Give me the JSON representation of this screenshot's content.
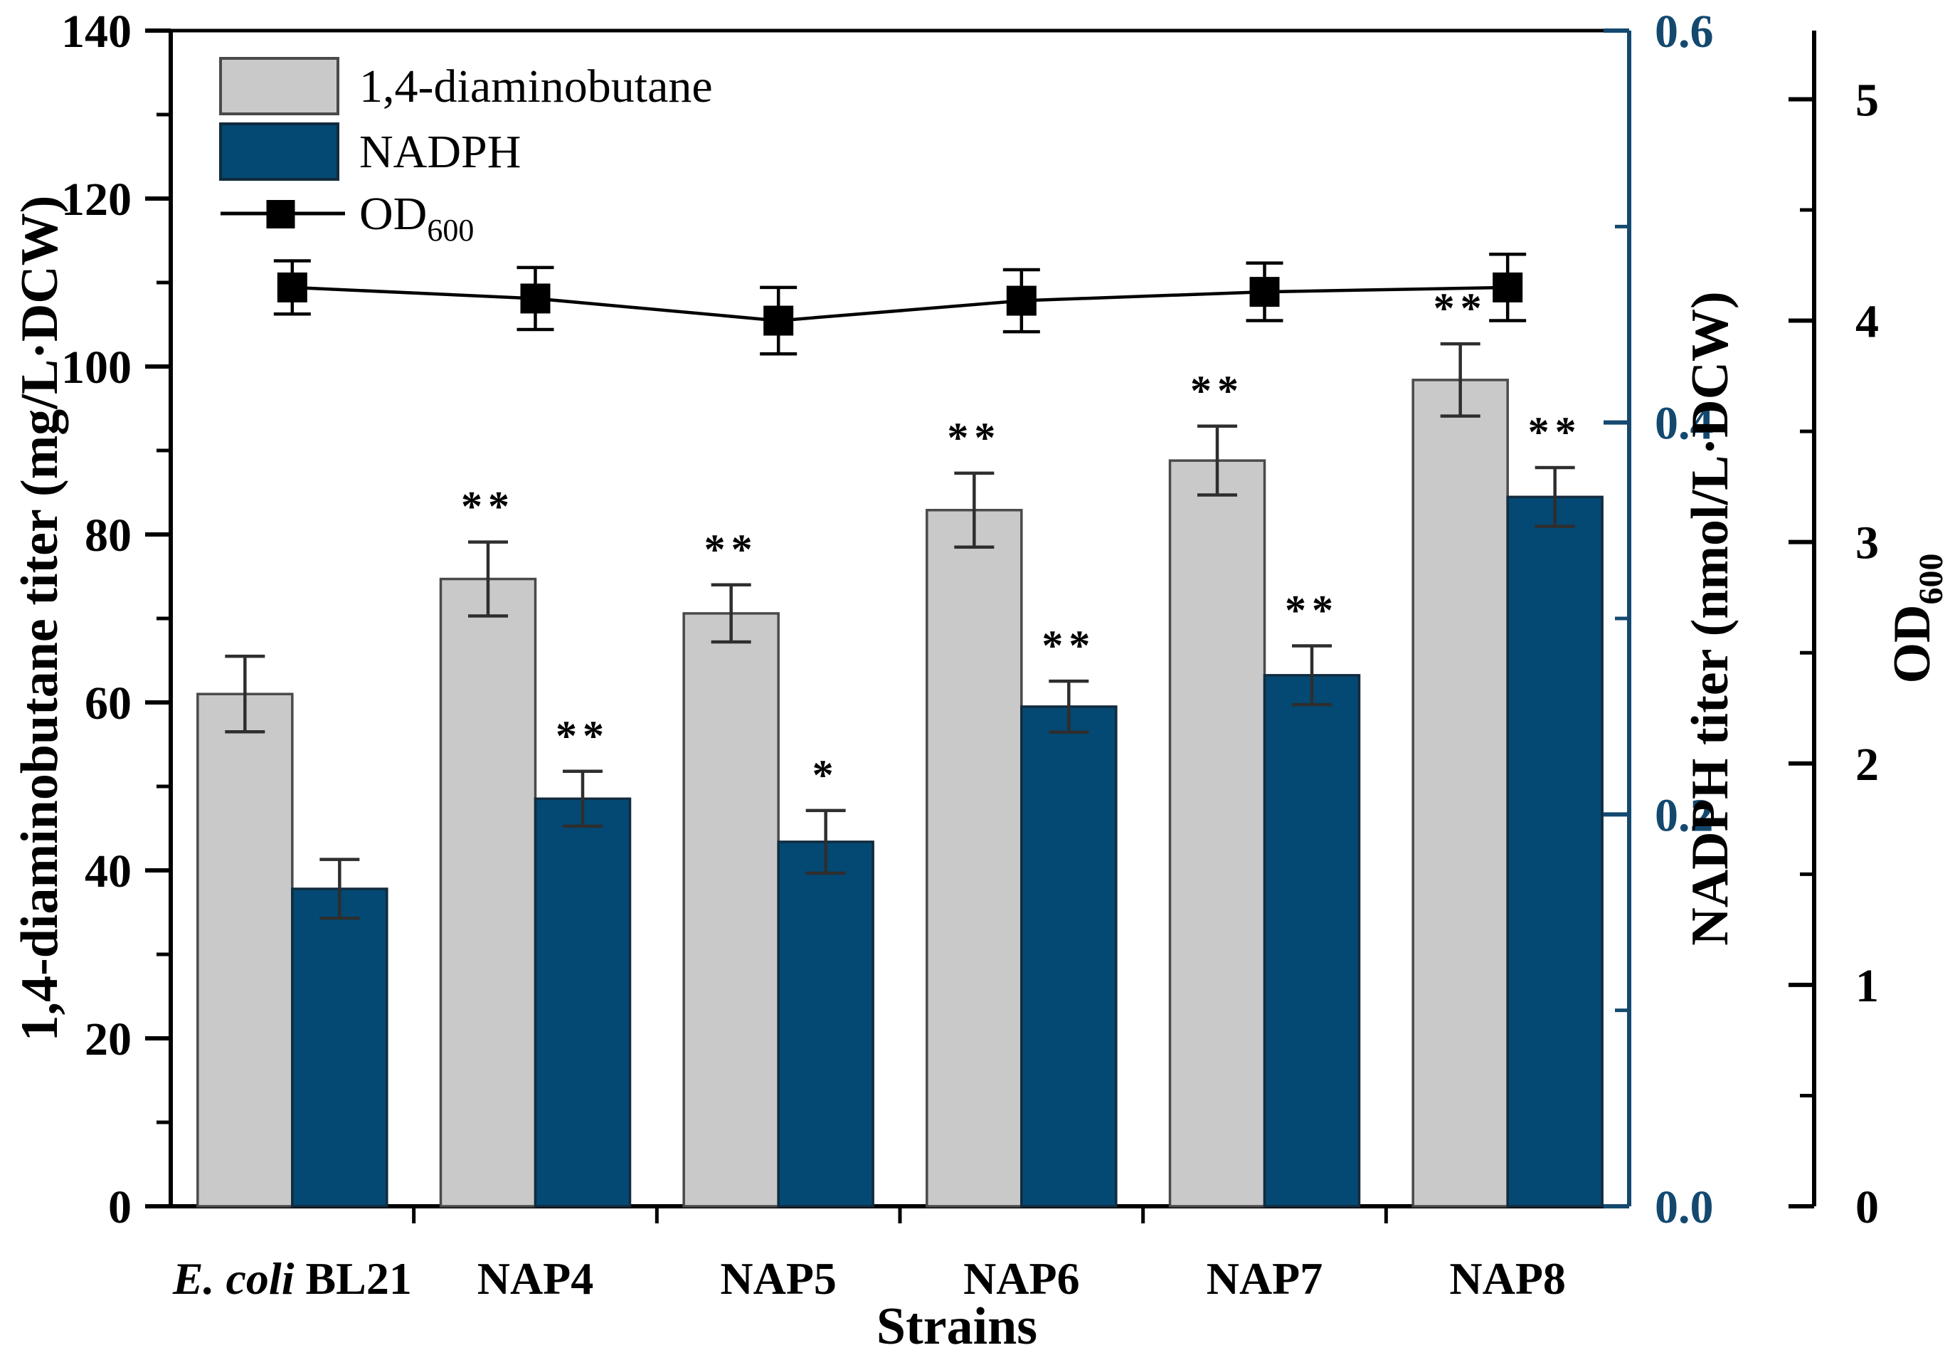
{
  "figure": {
    "background": "#ffffff",
    "xlabel": "Strains"
  },
  "chart_data": {
    "type": "bar",
    "subtype": "grouped-bars-with-line-overlay",
    "categories": [
      "E. coli BL21",
      "NAP4",
      "NAP5",
      "NAP6",
      "NAP7",
      "NAP8"
    ],
    "category_italic_prefix": [
      "E. coli",
      "",
      "",
      "",
      "",
      ""
    ],
    "xlabel": "Strains",
    "grid": "off",
    "legend_position": "top-left-inside",
    "series": [
      {
        "name": "1,4-diaminobutane",
        "type": "bar",
        "axis": "left",
        "color": "#c9c9c9",
        "border": "#4a4a4a",
        "values": [
          61.0,
          74.7,
          70.6,
          82.9,
          88.8,
          98.4
        ],
        "errors": [
          4.5,
          4.4,
          3.4,
          4.4,
          4.1,
          4.3
        ],
        "significance": [
          "",
          "**",
          "**",
          "**",
          "**",
          "**"
        ]
      },
      {
        "name": "NADPH",
        "type": "bar",
        "axis": "right_nadph",
        "color": "#034973",
        "border": "#122b3e",
        "values": [
          0.162,
          0.208,
          0.186,
          0.255,
          0.271,
          0.362
        ],
        "errors": [
          0.015,
          0.014,
          0.016,
          0.013,
          0.015,
          0.015
        ],
        "significance": [
          "",
          "**",
          "*",
          "**",
          "**",
          "**"
        ]
      },
      {
        "name": "OD600",
        "label_text": "OD",
        "label_sub": "600",
        "type": "line",
        "axis": "right_od",
        "color": "#000000",
        "marker": "filled-square",
        "values": [
          4.15,
          4.1,
          4.0,
          4.09,
          4.13,
          4.15
        ],
        "errors": [
          0.12,
          0.14,
          0.15,
          0.14,
          0.13,
          0.15
        ]
      }
    ],
    "axes": {
      "left": {
        "title": "1,4-diaminobutane titer (mg/L·DCW)",
        "min": 0,
        "max": 140,
        "major_step": 20,
        "minor_step": 10,
        "tick_labels": [
          "0",
          "20",
          "40",
          "60",
          "80",
          "100",
          "120",
          "140"
        ],
        "color": "#000000"
      },
      "right_nadph": {
        "title": "NADPH titer (nmol/L·DCW)",
        "min": 0,
        "max": 0.6,
        "major_step": 0.2,
        "minor_step": 0.1,
        "tick_labels": [
          "0.0",
          "0.2",
          "0.4",
          "0.6"
        ],
        "color": "#14496f",
        "title_color": "#000000"
      },
      "right_od": {
        "title": "OD",
        "title_sub": "600",
        "min": 0,
        "max": 5.31,
        "major_step": 1,
        "minor_step": 0.5,
        "tick_labels": [
          "0",
          "1",
          "2",
          "3",
          "4",
          "5"
        ],
        "color": "#000000"
      }
    },
    "legend": [
      {
        "kind": "swatch",
        "series": 0,
        "label": "1,4-diaminobutane"
      },
      {
        "kind": "swatch",
        "series": 1,
        "label": "NADPH"
      },
      {
        "kind": "line-marker",
        "series": 2,
        "label": "OD",
        "label_sub": "600"
      }
    ]
  }
}
